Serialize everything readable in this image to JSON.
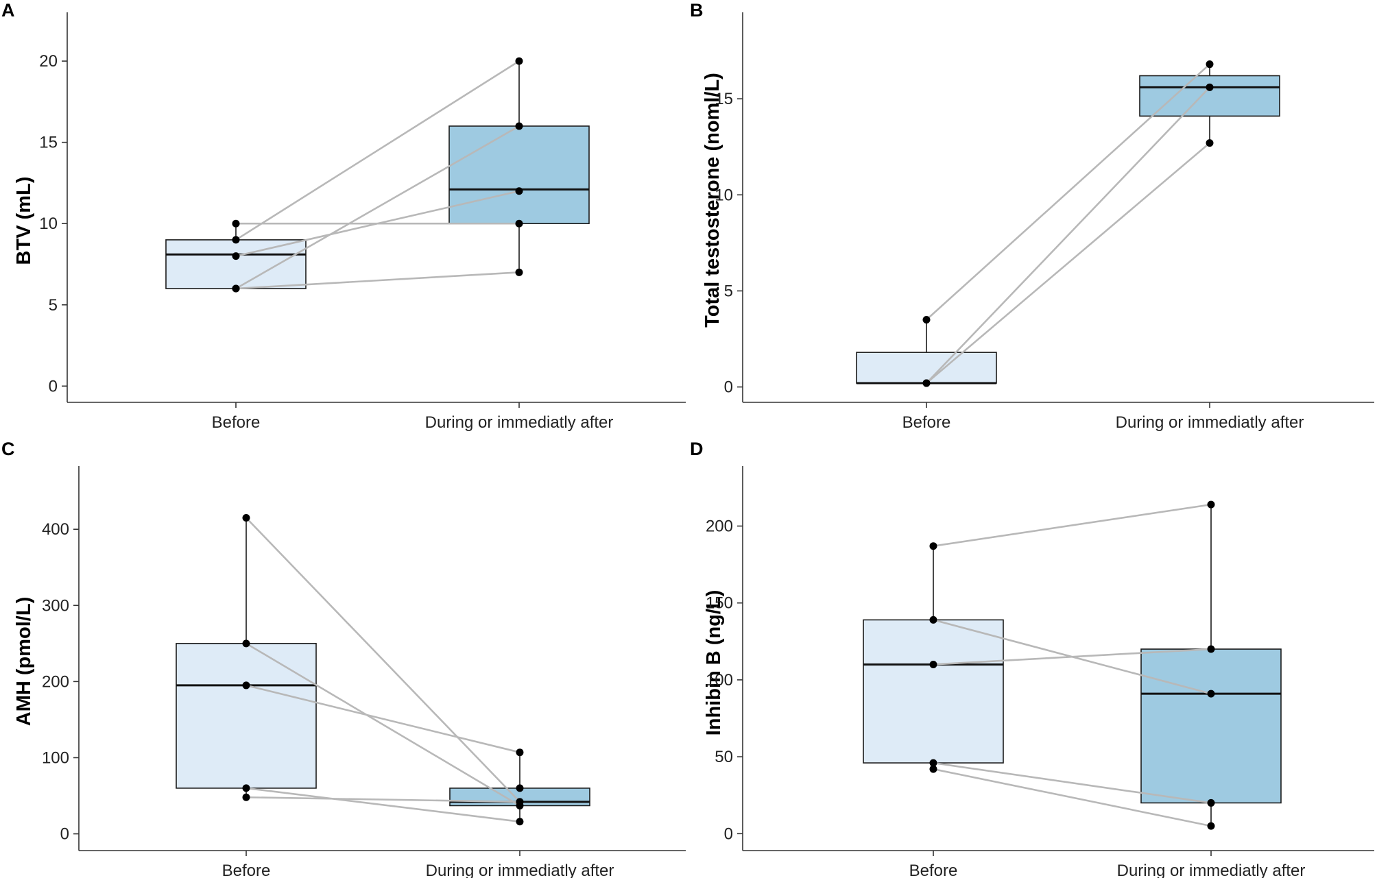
{
  "colors": {
    "before_fill": "#deebf7",
    "after_fill": "#9ecae1",
    "pair_line": "#b8b8b8",
    "point": "#000000"
  },
  "chart_data": [
    {
      "panel": "A",
      "type": "box",
      "title": "",
      "xlabel": "",
      "ylabel": "BTV (mL)",
      "categories": [
        "Before",
        "During or immediatly after"
      ],
      "ylim": [
        -1,
        23
      ],
      "yticks": [
        0,
        5,
        10,
        15,
        20
      ],
      "boxes": [
        {
          "q1": 6,
          "median": 8.1,
          "q3": 9,
          "whisker_low": 6,
          "whisker_high": 10
        },
        {
          "q1": 10,
          "median": 12.1,
          "q3": 16,
          "whisker_low": 7,
          "whisker_high": 20
        }
      ],
      "pairs": [
        [
          10,
          10
        ],
        [
          9,
          20
        ],
        [
          8,
          12
        ],
        [
          6,
          16
        ],
        [
          6,
          7
        ]
      ],
      "extra_points": [
        [],
        []
      ]
    },
    {
      "panel": "B",
      "type": "box",
      "title": "",
      "xlabel": "",
      "ylabel": "Total testosterone (noml/L)",
      "categories": [
        "Before",
        "During or immediatly after"
      ],
      "ylim": [
        -0.8,
        19.5
      ],
      "yticks": [
        0,
        5,
        10,
        15
      ],
      "boxes": [
        {
          "q1": 0.2,
          "median": 0.2,
          "q3": 1.8,
          "whisker_low": 0.2,
          "whisker_high": 3.5
        },
        {
          "q1": 14.1,
          "median": 15.6,
          "q3": 16.2,
          "whisker_low": 12.7,
          "whisker_high": 16.8
        }
      ],
      "pairs": [
        [
          3.5,
          16.8
        ],
        [
          0.2,
          15.6
        ],
        [
          0.2,
          12.7
        ]
      ],
      "extra_points": [
        [],
        []
      ]
    },
    {
      "panel": "C",
      "type": "box",
      "title": "",
      "xlabel": "",
      "ylabel": "AMH (pmol/L)",
      "categories": [
        "Before",
        "During or immediatly after"
      ],
      "ylim": [
        -22,
        483
      ],
      "yticks": [
        0,
        100,
        200,
        300,
        400
      ],
      "boxes": [
        {
          "q1": 60,
          "median": 195,
          "q3": 250,
          "whisker_low": 48,
          "whisker_high": 415
        },
        {
          "q1": 37,
          "median": 42,
          "q3": 60,
          "whisker_low": 16,
          "whisker_high": 107
        }
      ],
      "pairs": [
        [
          415,
          42
        ],
        [
          250,
          37
        ],
        [
          195,
          107
        ],
        [
          60,
          16
        ],
        [
          48,
          42
        ]
      ],
      "extra_points": [
        [],
        [
          60
        ]
      ]
    },
    {
      "panel": "D",
      "type": "box",
      "title": "",
      "xlabel": "",
      "ylabel": "Inhibin B (ng/L)",
      "categories": [
        "Before",
        "During or immediatly after"
      ],
      "ylim": [
        -11,
        239
      ],
      "yticks": [
        0,
        50,
        100,
        150,
        200
      ],
      "boxes": [
        {
          "q1": 46,
          "median": 110,
          "q3": 139,
          "whisker_low": 42,
          "whisker_high": 187
        },
        {
          "q1": 20,
          "median": 91,
          "q3": 120,
          "whisker_low": 5,
          "whisker_high": 214
        }
      ],
      "pairs": [
        [
          187,
          214
        ],
        [
          139,
          91
        ],
        [
          110,
          120
        ],
        [
          46,
          20
        ],
        [
          42,
          5
        ]
      ],
      "extra_points": [
        [],
        []
      ]
    }
  ]
}
